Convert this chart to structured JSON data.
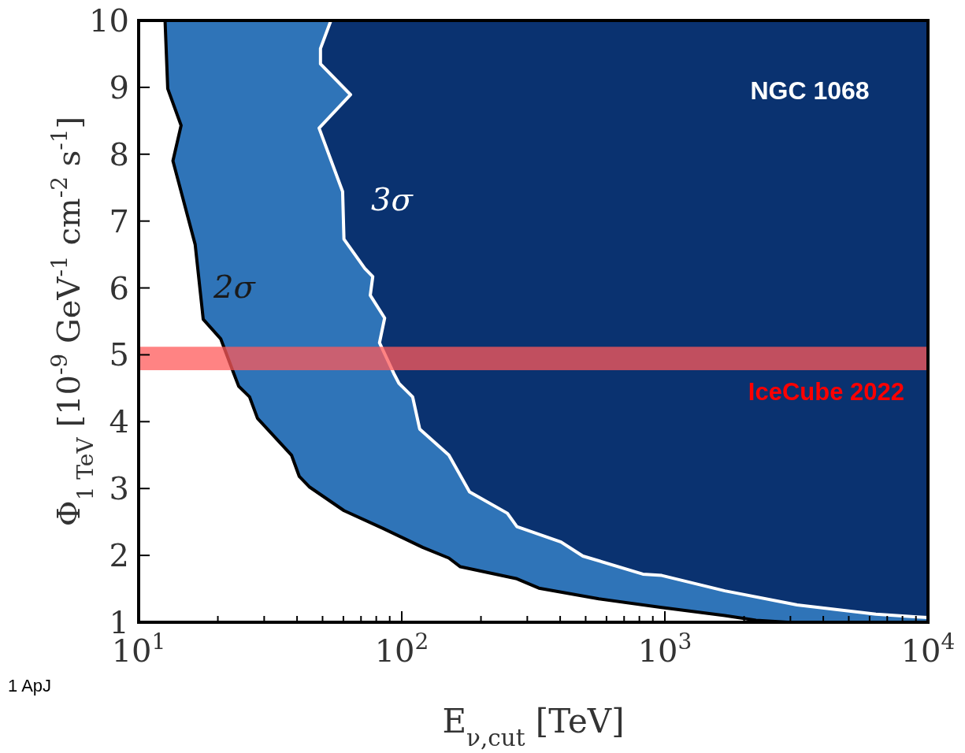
{
  "chart_data": {
    "type": "area",
    "xlabel": "E$_{ν,cut}$ [TeV]",
    "ylabel": "Φ$_{1 TeV}$ [10$^{-9}$ GeV$^{-1}$ cm$^{-2}$ s$^{-1}$]",
    "log": "x",
    "xlim": [
      10,
      10000
    ],
    "xticks": [
      {
        "value": 10,
        "label": "10$^{1}$"
      },
      {
        "value": 20,
        "label": null
      },
      {
        "value": 30,
        "label": null
      },
      {
        "value": 40,
        "label": null
      },
      {
        "value": 50,
        "label": null
      },
      {
        "value": 60,
        "label": null
      },
      {
        "value": 70,
        "label": null
      },
      {
        "value": 80,
        "label": null
      },
      {
        "value": 90,
        "label": null
      },
      {
        "value": 100,
        "label": "10$^{2}$"
      },
      {
        "value": 200,
        "label": null
      },
      {
        "value": 300,
        "label": null
      },
      {
        "value": 400,
        "label": null
      },
      {
        "value": 500,
        "label": null
      },
      {
        "value": 600,
        "label": null
      },
      {
        "value": 700,
        "label": null
      },
      {
        "value": 800,
        "label": null
      },
      {
        "value": 900,
        "label": null
      },
      {
        "value": 1000,
        "label": "10$^{3}$"
      },
      {
        "value": 2000,
        "label": null
      },
      {
        "value": 3000,
        "label": null
      },
      {
        "value": 4000,
        "label": null
      },
      {
        "value": 5000,
        "label": null
      },
      {
        "value": 6000,
        "label": null
      },
      {
        "value": 7000,
        "label": null
      },
      {
        "value": 8000,
        "label": null
      },
      {
        "value": 9000,
        "label": null
      },
      {
        "value": 10000,
        "label": "10$^{4}$"
      }
    ],
    "ylim": [
      1,
      10
    ],
    "yticks": [
      1,
      2,
      3,
      4,
      5,
      6,
      7,
      8,
      9,
      10
    ],
    "marker": "none",
    "series": [
      {
        "color": "#2f74b8",
        "x": [
          10,
          53.8,
          49.1,
          49.1,
          63.9,
          48.5,
          59.6,
          60.3,
          72.4,
          77.6,
          75.9,
          86.1,
          82.3,
          93.3,
          97.7,
          110,
          117,
          151,
          181,
          252,
          274,
          403,
          488,
          825,
          973,
          1690,
          3180,
          6340,
          9080,
          10000
        ],
        "values": [
          10,
          10,
          9.58,
          9.35,
          8.89,
          8.39,
          7.44,
          6.73,
          6.29,
          6.17,
          5.89,
          5.55,
          5.18,
          4.72,
          4.57,
          4.37,
          3.89,
          3.5,
          2.95,
          2.63,
          2.43,
          2.2,
          1.99,
          1.72,
          1.7,
          1.47,
          1.26,
          1.12,
          1.08,
          1.07
        ]
      },
      {
        "color": "#ffffff",
        "x": [
          10,
          12.6,
          12.9,
          14.5,
          13.5,
          16.4,
          17.6,
          20.5,
          23,
          24,
          26.4,
          28.3,
          38.1,
          40.8,
          44.7,
          60.3,
          85.2,
          120,
          151,
          167,
          274,
          332,
          561,
          973,
          1690,
          2220,
          2930
        ],
        "values": [
          10,
          10,
          8.98,
          8.43,
          7.9,
          6.65,
          5.53,
          5.24,
          4.72,
          4.53,
          4.37,
          4.05,
          3.5,
          3.18,
          3.02,
          2.67,
          2.4,
          2.12,
          1.96,
          1.83,
          1.65,
          1.51,
          1.35,
          1.22,
          1.1,
          1.03,
          1
        ]
      }
    ],
    "bands": [
      {
        "axis": "y",
        "from": 4.77,
        "to": 5.12,
        "label": "IceCube 2022",
        "color": "#ff5a5a"
      }
    ],
    "annotations": [
      "NGC 1068",
      "2σ",
      "3σ",
      "1 ApJ"
    ]
  }
}
